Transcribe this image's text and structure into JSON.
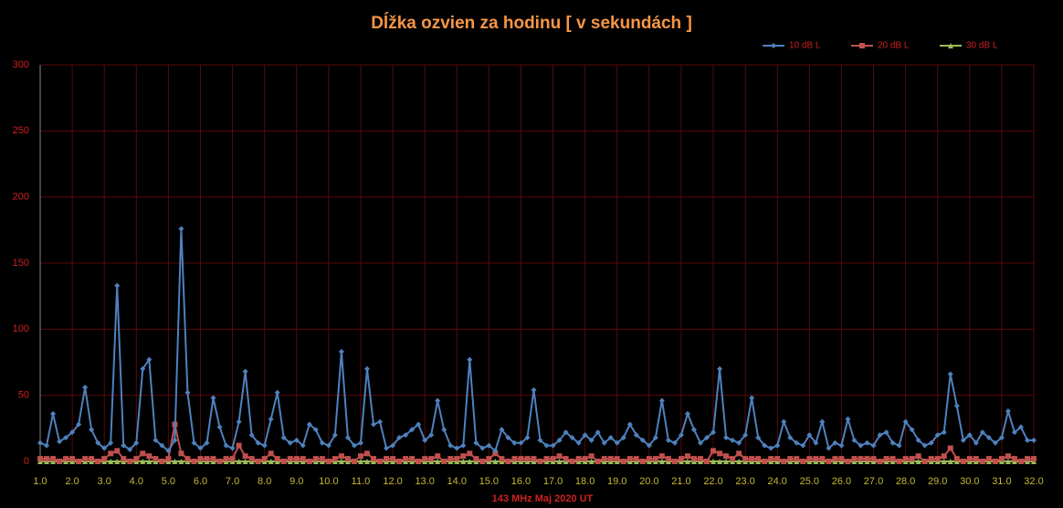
{
  "chart_data": {
    "type": "line",
    "title": "Dĺžka ozvien za hodinu [ v sekundách ]",
    "x_label": "143 MHz Maj  2020  UT",
    "x": [
      1,
      1.2,
      1.4,
      1.6,
      1.8,
      2,
      2.2,
      2.4,
      2.6,
      2.8,
      3,
      3.2,
      3.4,
      3.6,
      3.8,
      4,
      4.2,
      4.4,
      4.6,
      4.8,
      5,
      5.2,
      5.4,
      5.6,
      5.8,
      6,
      6.2,
      6.4,
      6.6,
      6.8,
      7,
      7.2,
      7.4,
      7.6,
      7.8,
      8,
      8.2,
      8.4,
      8.6,
      8.8,
      9,
      9.2,
      9.4,
      9.6,
      9.8,
      10,
      10.2,
      10.4,
      10.6,
      10.8,
      11,
      11.2,
      11.4,
      11.6,
      11.8,
      12,
      12.2,
      12.4,
      12.6,
      12.8,
      13,
      13.2,
      13.4,
      13.6,
      13.8,
      14,
      14.2,
      14.4,
      14.6,
      14.8,
      15,
      15.2,
      15.4,
      15.6,
      15.8,
      16,
      16.2,
      16.4,
      16.6,
      16.8,
      17,
      17.2,
      17.4,
      17.6,
      17.8,
      18,
      18.2,
      18.4,
      18.6,
      18.8,
      19,
      19.2,
      19.4,
      19.6,
      19.8,
      20,
      20.2,
      20.4,
      20.6,
      20.8,
      21,
      21.2,
      21.4,
      21.6,
      21.8,
      22,
      22.2,
      22.4,
      22.6,
      22.8,
      23,
      23.2,
      23.4,
      23.6,
      23.8,
      24,
      24.2,
      24.4,
      24.6,
      24.8,
      25,
      25.2,
      25.4,
      25.6,
      25.8,
      26,
      26.2,
      26.4,
      26.6,
      26.8,
      27,
      27.2,
      27.4,
      27.6,
      27.8,
      28,
      28.2,
      28.4,
      28.6,
      28.8,
      29,
      29.2,
      29.4,
      29.6,
      29.8,
      30,
      30.2,
      30.4,
      30.6,
      30.8,
      31,
      31.2,
      31.4,
      31.6,
      31.8,
      32
    ],
    "series": [
      {
        "name": "10 dB L",
        "color": "#4f81bd",
        "marker": "diamond",
        "values": [
          14,
          12,
          36,
          15,
          18,
          22,
          28,
          56,
          24,
          14,
          10,
          14,
          133,
          12,
          9,
          14,
          70,
          77,
          16,
          12,
          8,
          16,
          176,
          52,
          14,
          10,
          14,
          48,
          26,
          12,
          10,
          30,
          68,
          20,
          14,
          12,
          32,
          52,
          18,
          14,
          16,
          12,
          28,
          24,
          14,
          12,
          20,
          83,
          18,
          12,
          14,
          70,
          28,
          30,
          10,
          12,
          18,
          20,
          24,
          28,
          16,
          20,
          46,
          24,
          12,
          10,
          12,
          77,
          14,
          10,
          12,
          8,
          24,
          18,
          14,
          14,
          18,
          54,
          16,
          12,
          12,
          16,
          22,
          18,
          14,
          20,
          16,
          22,
          14,
          18,
          14,
          18,
          28,
          20,
          16,
          12,
          18,
          46,
          16,
          14,
          20,
          36,
          24,
          14,
          18,
          22,
          70,
          18,
          16,
          14,
          20,
          48,
          18,
          12,
          10,
          12,
          30,
          18,
          14,
          12,
          20,
          14,
          30,
          10,
          14,
          12,
          32,
          16,
          12,
          14,
          12,
          20,
          22,
          14,
          12,
          30,
          24,
          16,
          12,
          14,
          20,
          22,
          66,
          42,
          16,
          20,
          14,
          22,
          18,
          14,
          18,
          38,
          22,
          26,
          16,
          16
        ]
      },
      {
        "name": "20 dB L",
        "color": "#c0504d",
        "marker": "square",
        "values": [
          2,
          2,
          2,
          0,
          2,
          2,
          0,
          2,
          2,
          0,
          2,
          6,
          8,
          2,
          0,
          2,
          6,
          4,
          2,
          0,
          2,
          28,
          6,
          2,
          0,
          2,
          2,
          2,
          0,
          2,
          2,
          12,
          4,
          2,
          0,
          2,
          6,
          2,
          0,
          2,
          2,
          2,
          0,
          2,
          2,
          0,
          2,
          4,
          2,
          0,
          4,
          6,
          2,
          0,
          2,
          2,
          0,
          2,
          2,
          0,
          2,
          2,
          4,
          0,
          2,
          2,
          4,
          6,
          2,
          0,
          2,
          6,
          2,
          0,
          2,
          2,
          2,
          2,
          0,
          2,
          2,
          4,
          2,
          0,
          2,
          2,
          4,
          0,
          2,
          2,
          2,
          0,
          2,
          2,
          0,
          2,
          2,
          4,
          2,
          0,
          2,
          4,
          2,
          2,
          0,
          8,
          6,
          4,
          2,
          6,
          2,
          2,
          2,
          0,
          2,
          2,
          0,
          2,
          2,
          0,
          2,
          2,
          2,
          0,
          2,
          2,
          0,
          2,
          2,
          2,
          2,
          0,
          2,
          2,
          0,
          2,
          2,
          4,
          0,
          2,
          2,
          4,
          10,
          2,
          0,
          2,
          2,
          0,
          2,
          0,
          2,
          4,
          2,
          0,
          2,
          2
        ]
      },
      {
        "name": "30 dB L",
        "color": "#9bbb59",
        "marker": "triangle",
        "values": [
          0,
          0,
          0,
          0,
          0,
          0,
          0,
          0,
          0,
          0,
          0,
          0,
          0,
          0,
          0,
          0,
          0,
          0,
          0,
          0,
          0,
          0,
          0,
          0,
          0,
          0,
          0,
          0,
          0,
          0,
          0,
          0,
          0,
          0,
          0,
          0,
          0,
          0,
          0,
          0,
          0,
          0,
          0,
          0,
          0,
          0,
          0,
          0,
          0,
          0,
          0,
          0,
          0,
          0,
          0,
          0,
          0,
          0,
          0,
          0,
          0,
          0,
          0,
          0,
          0,
          0,
          0,
          0,
          0,
          0,
          0,
          0,
          0,
          0,
          0,
          0,
          0,
          0,
          0,
          0,
          0,
          0,
          0,
          0,
          0,
          0,
          0,
          0,
          0,
          0,
          0,
          0,
          0,
          0,
          0,
          0,
          0,
          0,
          0,
          0,
          0,
          0,
          0,
          0,
          0,
          0,
          0,
          0,
          0,
          0,
          0,
          0,
          0,
          0,
          0,
          0,
          0,
          0,
          0,
          0,
          0,
          0,
          0,
          0,
          0,
          0,
          0,
          0,
          0,
          0,
          0,
          0,
          0,
          0,
          0,
          0,
          0,
          0,
          0,
          0,
          0,
          0,
          0,
          0,
          0,
          0,
          0,
          0,
          0,
          0,
          0,
          0,
          0,
          0,
          0,
          0
        ]
      }
    ],
    "xlim": [
      1,
      32
    ],
    "xticks": [
      {
        "value": 1,
        "label": "1.0"
      },
      {
        "value": 2,
        "label": "2.0"
      },
      {
        "value": 3,
        "label": "3.0"
      },
      {
        "value": 4,
        "label": "4.0"
      },
      {
        "value": 5,
        "label": "5.0"
      },
      {
        "value": 6,
        "label": "6.0"
      },
      {
        "value": 7,
        "label": "7.0"
      },
      {
        "value": 8,
        "label": "8.0"
      },
      {
        "value": 9,
        "label": "9.0"
      },
      {
        "value": 10,
        "label": "10.0"
      },
      {
        "value": 11,
        "label": "11.0"
      },
      {
        "value": 12,
        "label": "12.0"
      },
      {
        "value": 13,
        "label": "13.0"
      },
      {
        "value": 14,
        "label": "14.0"
      },
      {
        "value": 15,
        "label": "15.0"
      },
      {
        "value": 16,
        "label": "16.0"
      },
      {
        "value": 17,
        "label": "17.0"
      },
      {
        "value": 18,
        "label": "18.0"
      },
      {
        "value": 19,
        "label": "19.0"
      },
      {
        "value": 20,
        "label": "20.0"
      },
      {
        "value": 21,
        "label": "21.0"
      },
      {
        "value": 22,
        "label": "22.0"
      },
      {
        "value": 23,
        "label": "23.0"
      },
      {
        "value": 24,
        "label": "24.0"
      },
      {
        "value": 25,
        "label": "25.0"
      },
      {
        "value": 26,
        "label": "26.0"
      },
      {
        "value": 27,
        "label": "27.0"
      },
      {
        "value": 28,
        "label": "28.0"
      },
      {
        "value": 29,
        "label": "29.0"
      },
      {
        "value": 30,
        "label": "30.0"
      },
      {
        "value": 31,
        "label": "31.0"
      },
      {
        "value": 32,
        "label": "32.0"
      }
    ],
    "ylim": [
      0,
      300
    ],
    "yticks": [
      0,
      50,
      100,
      150,
      200,
      250,
      300
    ],
    "grid": true,
    "legend": "top-right"
  }
}
